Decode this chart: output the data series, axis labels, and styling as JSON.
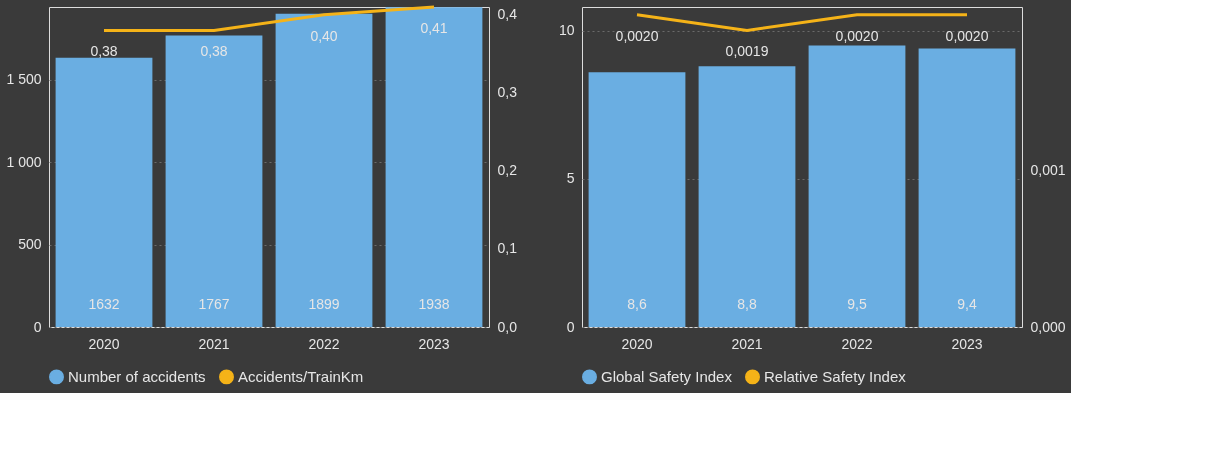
{
  "chart_data": [
    {
      "type": "bar",
      "categories": [
        "2020",
        "2021",
        "2022",
        "2023"
      ],
      "series": [
        {
          "name": "Number of accidents",
          "color": "#6aaee2",
          "values": [
            1632,
            1767,
            1899,
            1938
          ],
          "value_labels": [
            "1632",
            "1767",
            "1899",
            "1938"
          ]
        },
        {
          "name": "Accidents/TrainKm",
          "type": "line",
          "axis": "y2",
          "color": "#f5b318",
          "values": [
            0.38,
            0.38,
            0.4,
            0.41
          ],
          "value_labels": [
            "0,38",
            "0,38",
            "0,40",
            "0,41"
          ]
        }
      ],
      "ylim": [
        0,
        1940
      ],
      "yticks": [
        0,
        500,
        {
          "value": 1000,
          "label": "1 000"
        },
        {
          "value": 1500,
          "label": "1 500"
        }
      ],
      "y2lim": [
        0,
        0.41
      ],
      "y2ticks": [
        {
          "value": 0,
          "label": "0,0"
        },
        {
          "value": 0.1,
          "label": "0,1"
        },
        {
          "value": 0.2,
          "label": "0,2"
        },
        {
          "value": 0.3,
          "label": "0,3"
        },
        {
          "value": 0.4,
          "label": "0,4"
        }
      ],
      "grid": "y",
      "legend": "bottom"
    },
    {
      "type": "bar",
      "categories": [
        "2020",
        "2021",
        "2022",
        "2023"
      ],
      "series": [
        {
          "name": "Global Safety Index",
          "color": "#6aaee2",
          "values": [
            8.6,
            8.8,
            9.5,
            9.4
          ],
          "value_labels": [
            "8,6",
            "8,8",
            "9,5",
            "9,4"
          ]
        },
        {
          "name": "Relative Safety Index",
          "type": "line",
          "axis": "y2",
          "color": "#f5b318",
          "values": [
            0.002,
            0.0019,
            0.002,
            0.002
          ],
          "value_labels": [
            "0,0020",
            "0,0019",
            "0,0020",
            "0,0020"
          ]
        }
      ],
      "ylim": [
        0,
        10.8
      ],
      "yticks": [
        0,
        5,
        10
      ],
      "y2lim": [
        0,
        0.00205
      ],
      "y2ticks": [
        {
          "value": 0,
          "label": "0,000"
        },
        {
          "value": 0.001,
          "label": "0,001"
        }
      ],
      "grid": "y",
      "legend": "bottom"
    }
  ]
}
